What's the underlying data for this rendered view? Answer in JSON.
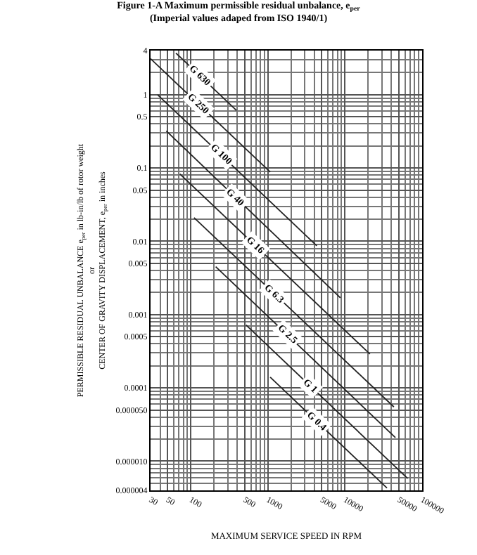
{
  "chart_data": {
    "type": "line",
    "title": "Figure 1-A Maximum permissible residual unbalance, e$_{per}$\n(Imperial values adaped from ISO 1940/1)",
    "xlabel": "MAXIMUM SERVICE SPEED IN RPM",
    "ylabel": "PERMISSIBLE RESIDUAL UNBALANCE e$_{per}$ in lb-in/lb of rotor weight\nor\nCENTER OF GRAVITY DISPLACEMENT, e$_{per}$ in inches",
    "log": "xy",
    "grid": true,
    "legend": false,
    "marker": "none",
    "line_style": "solid",
    "xlim": [
      30,
      100000
    ],
    "xticks": [
      30,
      50,
      100,
      500,
      1000,
      5000,
      10000,
      50000,
      100000
    ],
    "ylim": [
      4e-06,
      4
    ],
    "yticks": [
      4,
      1,
      0.5,
      0.1,
      0.05,
      0.01,
      0.005,
      0.001,
      0.0005,
      0.0001,
      {
        "value": 5e-05,
        "label": "0.000050"
      },
      {
        "value": 1e-05,
        "label": "0.000010"
      },
      {
        "value": 4e-06,
        "label": "0.000004"
      }
    ],
    "series": [
      {
        "name": "G 630",
        "color": "#222222",
        "x": [
          64,
          390
        ],
        "values": [
          3.7,
          0.61
        ]
      },
      {
        "name": "G 250",
        "color": "#222222",
        "x": [
          30,
          1070
        ],
        "values": [
          3.1,
          0.088
        ]
      },
      {
        "name": "G 100",
        "color": "#222222",
        "x": [
          37,
          4300
        ],
        "values": [
          1.0,
          0.0087
        ]
      },
      {
        "name": "G 40",
        "color": "#222222",
        "x": [
          48,
          8700
        ],
        "values": [
          0.32,
          0.0017
        ]
      },
      {
        "name": "G 16",
        "color": "#222222",
        "x": [
          72,
          21000
        ],
        "values": [
          0.083,
          0.00029
        ]
      },
      {
        "name": "G 6.3",
        "color": "#222222",
        "x": [
          110,
          43000
        ],
        "values": [
          0.021,
          5.5e-05
        ]
      },
      {
        "name": "G 2.5",
        "color": "#222222",
        "x": [
          210,
          45000
        ],
        "values": [
          0.0045,
          2.1e-05
        ]
      },
      {
        "name": "G 1",
        "color": "#222222",
        "x": [
          520,
          65000
        ],
        "values": [
          0.00072,
          5.8e-06
        ]
      },
      {
        "name": "G 0.4",
        "color": "#222222",
        "x": [
          1070,
          35000
        ],
        "values": [
          0.00014,
          4.3e-06
        ]
      }
    ]
  }
}
